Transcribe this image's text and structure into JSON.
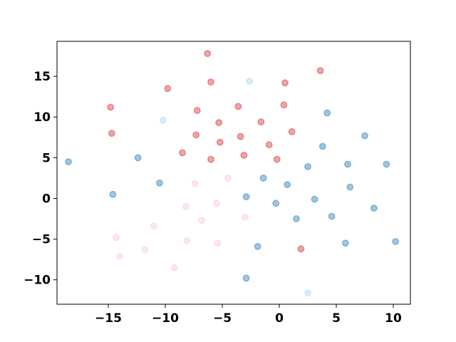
{
  "chart_data": {
    "type": "scatter",
    "title": "",
    "xlabel": "",
    "ylabel": "",
    "xlim": [
      -19.5,
      11.5
    ],
    "ylim": [
      -13,
      19.3
    ],
    "xticks": [
      -15,
      -10,
      -5,
      0,
      5,
      10
    ],
    "yticks": [
      -10,
      -5,
      0,
      5,
      10,
      15
    ],
    "xtick_labels": [
      "−15",
      "−10",
      "−5",
      "0",
      "5",
      "10"
    ],
    "ytick_labels": [
      "−10",
      "−5",
      "0",
      "5",
      "10",
      "15"
    ],
    "grid": false,
    "marker_alpha": 0.5,
    "series": [
      {
        "color": "#d62728",
        "points": [
          [
            -6.3,
            17.8
          ],
          [
            3.6,
            15.7
          ],
          [
            -6.0,
            14.3
          ],
          [
            0.5,
            14.2
          ],
          [
            -9.8,
            13.5
          ],
          [
            -14.8,
            11.2
          ],
          [
            0.4,
            11.5
          ],
          [
            -3.6,
            11.3
          ],
          [
            -7.2,
            10.8
          ],
          [
            -5.3,
            9.3
          ],
          [
            -1.6,
            9.4
          ],
          [
            -14.7,
            8.0
          ],
          [
            -7.3,
            7.8
          ],
          [
            1.1,
            8.2
          ],
          [
            -3.4,
            7.6
          ],
          [
            -5.2,
            6.9
          ],
          [
            -0.9,
            6.6
          ],
          [
            -8.5,
            5.6
          ],
          [
            -3.1,
            5.3
          ],
          [
            -6.0,
            4.8
          ],
          [
            -0.2,
            4.8
          ],
          [
            1.9,
            -6.2
          ]
        ]
      },
      {
        "color": "#1f77b4",
        "points": [
          [
            4.2,
            10.5
          ],
          [
            7.5,
            7.7
          ],
          [
            3.8,
            6.4
          ],
          [
            -12.4,
            5.0
          ],
          [
            -18.5,
            4.5
          ],
          [
            6.0,
            4.2
          ],
          [
            9.4,
            4.2
          ],
          [
            2.5,
            3.9
          ],
          [
            -1.4,
            2.5
          ],
          [
            -10.5,
            1.9
          ],
          [
            0.7,
            1.7
          ],
          [
            6.2,
            1.4
          ],
          [
            -14.6,
            0.5
          ],
          [
            -2.9,
            0.2
          ],
          [
            3.1,
            -0.1
          ],
          [
            -0.3,
            -0.6
          ],
          [
            8.3,
            -1.2
          ],
          [
            4.6,
            -2.2
          ],
          [
            1.5,
            -2.5
          ],
          [
            -1.9,
            -5.9
          ],
          [
            5.8,
            -5.5
          ],
          [
            10.2,
            -5.3
          ],
          [
            -2.9,
            -9.8
          ]
        ]
      },
      {
        "color": "#9fd8ec",
        "points": [
          [
            -2.6,
            14.4
          ],
          [
            -10.2,
            9.6
          ],
          [
            2.5,
            -11.6
          ]
        ]
      },
      {
        "color": "#f7c7d2",
        "points": [
          [
            -4.5,
            2.5
          ],
          [
            -7.4,
            1.8
          ],
          [
            -8.2,
            -1.0
          ],
          [
            -5.5,
            -0.6
          ],
          [
            -3.0,
            -2.3
          ],
          [
            -6.8,
            -2.7
          ],
          [
            -11.0,
            -3.4
          ],
          [
            -14.3,
            -4.8
          ],
          [
            -8.1,
            -5.2
          ],
          [
            -5.4,
            -5.5
          ],
          [
            -11.8,
            -6.3
          ],
          [
            -14.0,
            -7.1
          ],
          [
            -9.2,
            -8.5
          ]
        ]
      }
    ]
  }
}
